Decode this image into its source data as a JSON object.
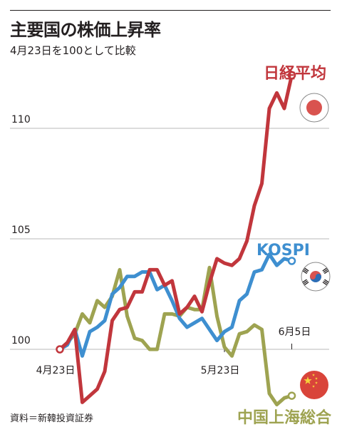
{
  "header": {
    "title": "主要国の株価上昇率",
    "subtitle": "4月23日を100として比較"
  },
  "footer": {
    "source": "資料＝新韓投資証券"
  },
  "chart_data": {
    "type": "line",
    "title": "主要国の株価上昇率",
    "subtitle": "4月23日を100として比較",
    "xlabel": "",
    "ylabel": "",
    "ylim": [
      97.0,
      113.0
    ],
    "yticks": [
      100,
      105,
      110
    ],
    "xticks": [
      {
        "label": "4月23日",
        "x": 0
      },
      {
        "label": "5月23日",
        "x": 22
      },
      {
        "label": "6月5日",
        "x": 31
      }
    ],
    "grid": true,
    "series": [
      {
        "name": "日経平均",
        "color": "#c1363c",
        "flag": "japan-flag",
        "x": [
          0,
          1,
          2,
          3,
          4,
          5,
          6,
          7,
          8,
          9,
          10,
          11,
          12,
          13,
          14,
          15,
          16,
          17,
          18,
          19,
          20,
          21,
          22,
          23,
          24,
          25,
          26,
          27,
          28,
          29,
          30,
          31
        ],
        "values": [
          100.0,
          100.3,
          100.9,
          97.6,
          97.9,
          98.2,
          99.0,
          101.3,
          101.8,
          101.9,
          102.6,
          102.6,
          103.6,
          103.6,
          102.9,
          103.1,
          101.6,
          101.9,
          102.4,
          101.7,
          103.0,
          104.1,
          103.9,
          103.8,
          104.1,
          104.9,
          106.5,
          107.5,
          110.9,
          111.6,
          110.9,
          112.4
        ]
      },
      {
        "name": "KOSPI",
        "color": "#3e8fd0",
        "flag": "korea-flag",
        "x": [
          0,
          1,
          2,
          3,
          4,
          5,
          6,
          7,
          8,
          9,
          10,
          11,
          12,
          13,
          14,
          15,
          16,
          17,
          18,
          19,
          20,
          21,
          22,
          23,
          24,
          25,
          26,
          27,
          28,
          29,
          30,
          31
        ],
        "values": [
          100.0,
          100.2,
          100.9,
          99.7,
          100.8,
          101.0,
          101.3,
          102.5,
          102.8,
          103.3,
          103.3,
          103.5,
          103.5,
          102.7,
          102.9,
          102.2,
          101.4,
          101.0,
          101.2,
          101.4,
          100.9,
          100.4,
          100.8,
          101.0,
          102.2,
          102.5,
          103.5,
          103.6,
          104.3,
          103.8,
          104.1,
          104.0
        ]
      },
      {
        "name": "中国上海総合",
        "color": "#9ea351",
        "flag": "china-flag",
        "x": [
          0,
          1,
          2,
          3,
          4,
          5,
          6,
          7,
          8,
          9,
          10,
          11,
          12,
          13,
          14,
          15,
          16,
          17,
          18,
          19,
          20,
          21,
          22,
          23,
          24,
          25,
          26,
          27,
          28,
          29,
          30,
          31
        ],
        "values": [
          100.0,
          100.3,
          100.7,
          101.6,
          101.2,
          102.2,
          101.9,
          102.4,
          103.6,
          101.5,
          100.5,
          100.4,
          100.0,
          100.0,
          101.6,
          101.6,
          101.5,
          101.9,
          101.8,
          101.8,
          103.7,
          101.5,
          100.1,
          99.7,
          100.7,
          100.8,
          101.1,
          100.9,
          98.0,
          97.5,
          97.8,
          97.9
        ]
      }
    ]
  }
}
